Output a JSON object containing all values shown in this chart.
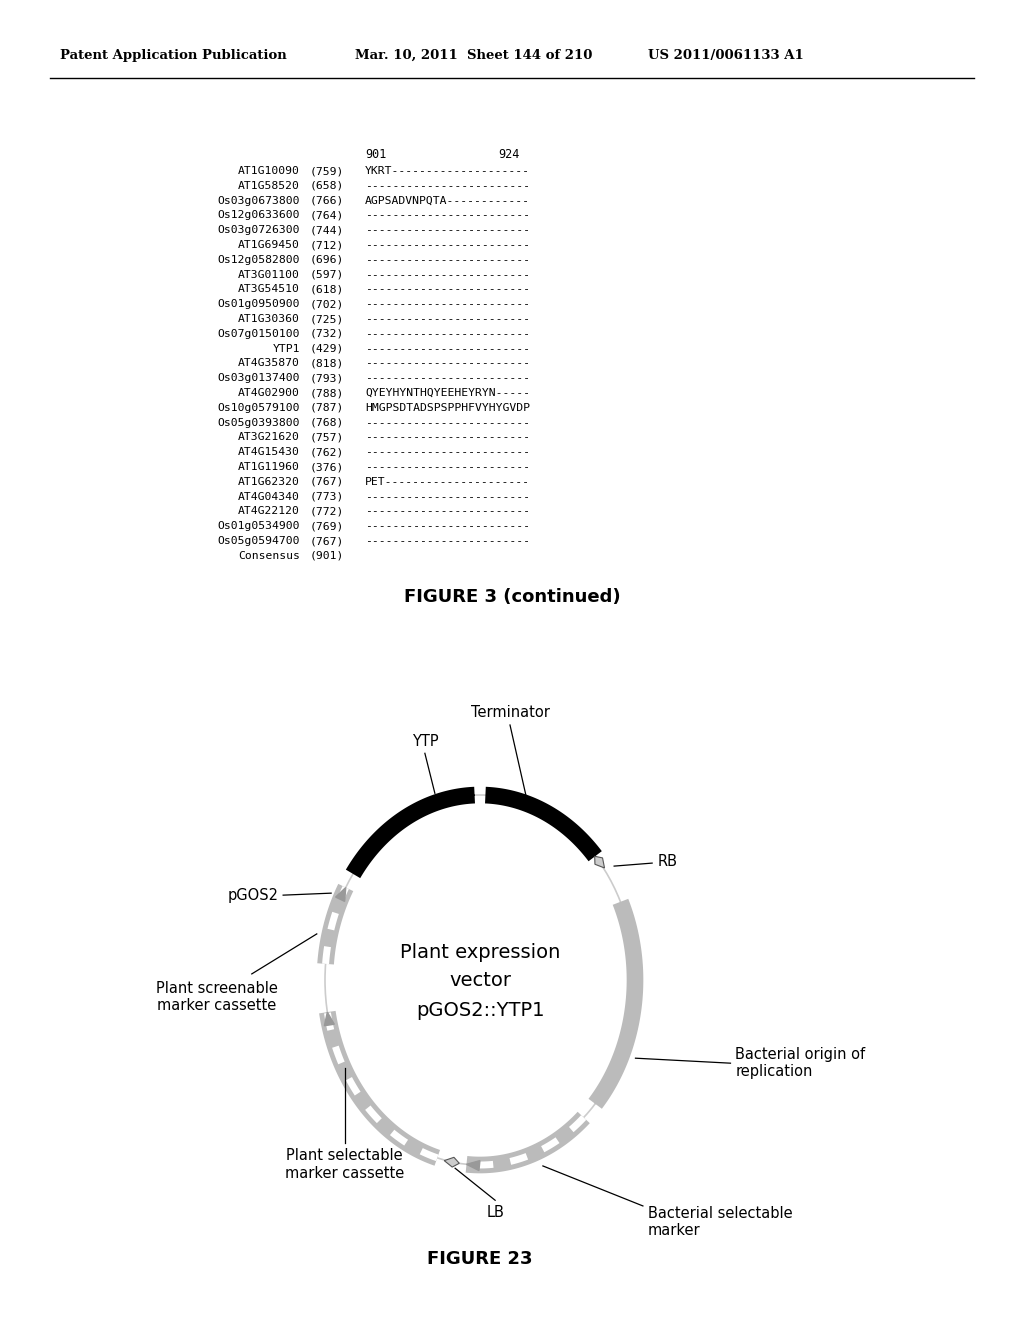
{
  "header_left": "Patent Application Publication",
  "header_middle": "Mar. 10, 2011  Sheet 144 of 210",
  "header_right": "US 2011/0061133 A1",
  "figure3_caption": "FIGURE 3 (continued)",
  "figure23_caption": "FIGURE 23",
  "alignment_header_901": "901",
  "alignment_header_924": "924",
  "alignment_rows": [
    {
      "name": "AT1G10090",
      "num": "(759)",
      "seq": "YKRT--------------------"
    },
    {
      "name": "AT1G58520",
      "num": "(658)",
      "seq": "------------------------"
    },
    {
      "name": "Os03g0673800",
      "num": "(766)",
      "seq": "AGPSADVNPQTA------------"
    },
    {
      "name": "Os12g0633600",
      "num": "(764)",
      "seq": "------------------------"
    },
    {
      "name": "Os03g0726300",
      "num": "(744)",
      "seq": "------------------------"
    },
    {
      "name": "AT1G69450",
      "num": "(712)",
      "seq": "------------------------"
    },
    {
      "name": "Os12g0582800",
      "num": "(696)",
      "seq": "------------------------"
    },
    {
      "name": "AT3G01100",
      "num": "(597)",
      "seq": "------------------------"
    },
    {
      "name": "AT3G54510",
      "num": "(618)",
      "seq": "------------------------"
    },
    {
      "name": "Os01g0950900",
      "num": "(702)",
      "seq": "------------------------"
    },
    {
      "name": "AT1G30360",
      "num": "(725)",
      "seq": "------------------------"
    },
    {
      "name": "Os07g0150100",
      "num": "(732)",
      "seq": "------------------------"
    },
    {
      "name": "YTP1",
      "num": "(429)",
      "seq": "------------------------"
    },
    {
      "name": "AT4G35870",
      "num": "(818)",
      "seq": "------------------------"
    },
    {
      "name": "Os03g0137400",
      "num": "(793)",
      "seq": "------------------------"
    },
    {
      "name": "AT4G02900",
      "num": "(788)",
      "seq": "QYEYHYNTHQYEEHEYRYN-----"
    },
    {
      "name": "Os10g0579100",
      "num": "(787)",
      "seq": "HMGPSDTADSPSPPHFVYHYGVDP"
    },
    {
      "name": "Os05g0393800",
      "num": "(768)",
      "seq": "------------------------"
    },
    {
      "name": "AT3G21620",
      "num": "(757)",
      "seq": "------------------------"
    },
    {
      "name": "AT4G15430",
      "num": "(762)",
      "seq": "------------------------"
    },
    {
      "name": "AT1G11960",
      "num": "(376)",
      "seq": "------------------------"
    },
    {
      "name": "AT1G62320",
      "num": "(767)",
      "seq": "PET---------------------"
    },
    {
      "name": "AT4G04340",
      "num": "(773)",
      "seq": "------------------------"
    },
    {
      "name": "AT4G22120",
      "num": "(772)",
      "seq": "------------------------"
    },
    {
      "name": "Os01g0534900",
      "num": "(769)",
      "seq": "------------------------"
    },
    {
      "name": "Os05g0594700",
      "num": "(767)",
      "seq": "------------------------"
    },
    {
      "name": "Consensus",
      "num": "(901)",
      "seq": ""
    }
  ],
  "center_text_line1": "Plant expression",
  "center_text_line2": "vector",
  "center_text_line3": "pGOS2::YTP1",
  "label_terminator": "Terminator",
  "label_RB": "RB",
  "label_YTP": "YTP",
  "label_pGOS2": "pGOS2",
  "label_plant_screenable": "Plant screenable\nmarker cassette",
  "label_plant_selectable": "Plant selectable\nmarker cassette",
  "label_LB": "LB",
  "label_bacterial_selectable": "Bacterial selectable\nmarker",
  "label_bacterial_origin": "Bacterial origin of\nreplication",
  "bg_color": "#ffffff",
  "text_color": "#000000"
}
